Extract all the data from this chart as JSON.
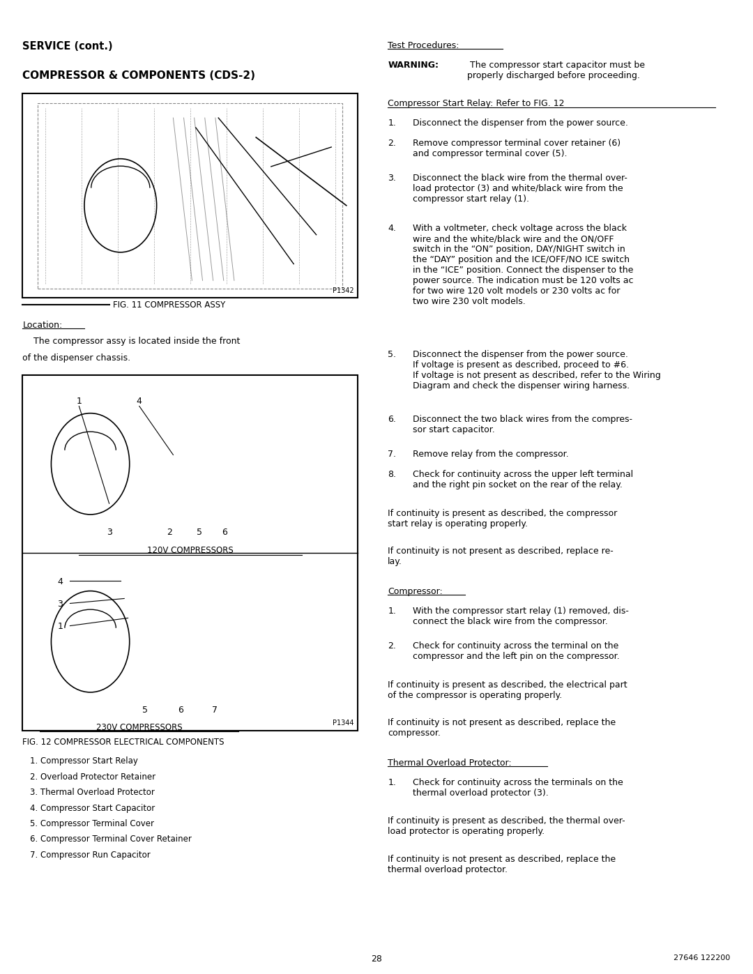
{
  "bg_color": "#ffffff",
  "page_width": 10.8,
  "page_height": 13.97,
  "header_service": "SERVICE (cont.)",
  "header_section": "COMPRESSOR & COMPONENTS (CDS-2)",
  "fig11_caption": "FIG. 11 COMPRESSOR ASSY",
  "fig11_p": "P1342",
  "location_heading": "Location:",
  "location_text_indent": "    The compressor assy is located inside the front",
  "location_text2": "of the dispenser chassis.",
  "fig12_caption": "FIG. 12 COMPRESSOR ELECTRICAL COMPONENTS",
  "fig12_p": "P1344",
  "label_120v": "120V COMPRESSORS",
  "label_230v": "230V COMPRESSORS",
  "parts_list": [
    "1. Compressor Start Relay",
    "2. Overload Protector Retainer",
    "3. Thermal Overload Protector",
    "4. Compressor Start Capacitor",
    "5. Compressor Terminal Cover",
    "6. Compressor Terminal Cover Retainer",
    "7. Compressor Run Capacitor"
  ],
  "right_col_heading1": "Test Procedures:",
  "warning_bold": "WARNING:",
  "warning_text": " The compressor start capacitor must be\nproperly discharged before proceeding.",
  "relay_heading": "Compressor Start Relay: Refer to FIG. 12",
  "relay_steps": [
    "Disconnect the dispenser from the power source.",
    "Remove compressor terminal cover retainer (6)\nand compressor terminal cover (5).",
    "Disconnect the black wire from the thermal over-\nload protector (3) and white/black wire from the\ncompressor start relay (1).",
    "With a voltmeter, check voltage across the black\nwire and the white/black wire and the ON/OFF\nswitch in the “ON” position, DAY/NIGHT switch in\nthe “DAY” position and the ICE/OFF/NO ICE switch\nin the “ICE” position. Connect the dispenser to the\npower source. The indication must be 120 volts ac\nfor two wire 120 volt models or 230 volts ac for\ntwo wire 230 volt models.",
    "Disconnect the dispenser from the power source.\nIf voltage is present as described, proceed to #6.\nIf voltage is not present as described, refer to the Wiring\nDiagram and check the dispenser wiring harness.",
    "Disconnect the two black wires from the compres-\nsor start capacitor.",
    "Remove relay from the compressor.",
    "Check for continuity across the upper left terminal\nand the right pin socket on the rear of the relay."
  ],
  "relay_if1": "If continuity is present as described, the compressor\nstart relay is operating properly.",
  "relay_if2": "If continuity is not present as described, replace re-\nlay.",
  "compressor_heading": "Compressor:",
  "compressor_steps": [
    "With the compressor start relay (1) removed, dis-\nconnect the black wire from the compressor.",
    "Check for continuity across the terminal on the\ncompressor and the left pin on the compressor."
  ],
  "compressor_if1": "If continuity is present as described, the electrical part\nof the compressor is operating properly.",
  "compressor_if2": "If continuity is not present as described, replace the\ncompressor.",
  "thermal_heading": "Thermal Overload Protector:",
  "thermal_steps": [
    "Check for continuity across the terminals on the\nthermal overload protector (3)."
  ],
  "thermal_if1": "If continuity is present as described, the thermal over-\nload protector is operating properly.",
  "thermal_if2": "If continuity is not present as described, replace the\nthermal overload protector.",
  "page_number": "28",
  "doc_number": "27646 122200"
}
